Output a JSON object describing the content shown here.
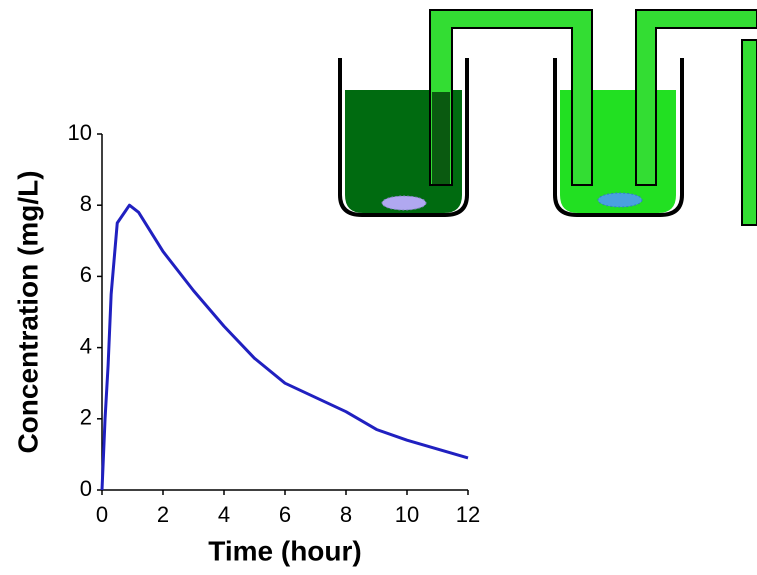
{
  "chart_data": {
    "type": "line",
    "xlabel": "Time (hour)",
    "ylabel": "Concentration (mg/L)",
    "x": [
      0,
      0.1,
      0.2,
      0.3,
      0.5,
      0.9,
      1.2,
      2,
      3,
      4,
      5,
      6,
      7,
      8,
      9,
      10,
      11,
      12
    ],
    "values": [
      0,
      2,
      3.5,
      5.5,
      7.5,
      8.0,
      7.8,
      6.7,
      5.6,
      4.6,
      3.7,
      3.0,
      2.6,
      2.2,
      1.7,
      1.4,
      1.15,
      0.9
    ],
    "color": "#2020c0",
    "xlim": [
      0,
      12
    ],
    "xticks": [
      0,
      2,
      4,
      6,
      8,
      10,
      12
    ],
    "ylim": [
      0,
      10
    ],
    "yticks": [
      0,
      2,
      4,
      6,
      8,
      10
    ]
  }
}
